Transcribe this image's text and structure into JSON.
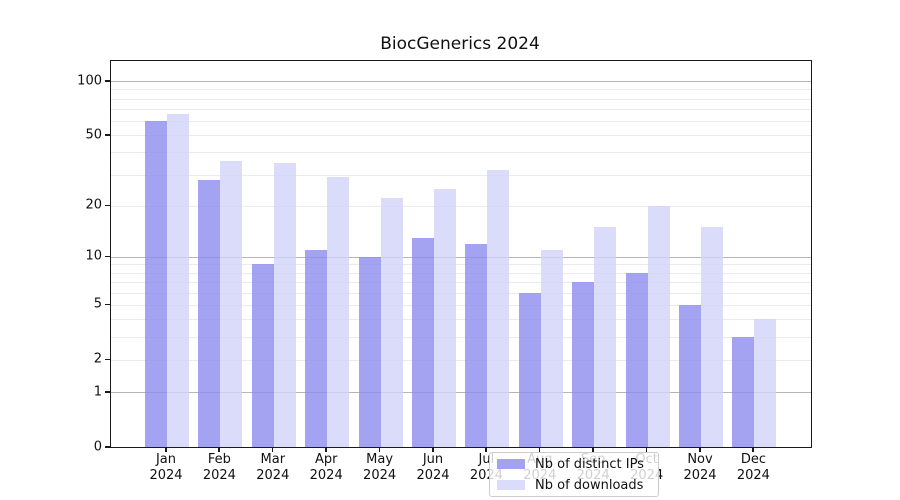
{
  "title": "BiocGenerics 2024",
  "chart_data": {
    "type": "bar",
    "title": "BiocGenerics 2024",
    "categories": [
      "Jan\n2024",
      "Feb\n2024",
      "Mar\n2024",
      "Apr\n2024",
      "May\n2024",
      "Jun\n2024",
      "Jul\n2024",
      "Aug\n2024",
      "Sep\n2024",
      "Oct\n2024",
      "Nov\n2024",
      "Dec\n2024"
    ],
    "series": [
      {
        "name": "Nb of distinct IPs",
        "color": "rgba(140,140,238,0.8)",
        "values": [
          60,
          28,
          9,
          11,
          10,
          13,
          12,
          6,
          7,
          8,
          5,
          3
        ]
      },
      {
        "name": "Nb of downloads",
        "color": "rgba(210,210,249,0.8)",
        "values": [
          66,
          36,
          35,
          29,
          22,
          25,
          32,
          11,
          15,
          20,
          15,
          4
        ]
      }
    ],
    "y_axis": {
      "scale": "log1p",
      "tick_labels": [
        "100",
        "50",
        "20",
        "10",
        "5",
        "2",
        "1",
        "0"
      ],
      "tick_values": [
        100,
        50,
        20,
        10,
        5,
        2,
        1,
        0
      ],
      "gridlines_minor": [
        2,
        3,
        4,
        5,
        6,
        7,
        8,
        9,
        20,
        30,
        40,
        50,
        60,
        70,
        80,
        90
      ],
      "gridlines_major": [
        1,
        10,
        100
      ],
      "range_top": 100
    },
    "x_axis": {
      "label": "",
      "year": "2024"
    },
    "legend": {
      "position": "bottom-center",
      "entries": [
        "Nb of distinct IPs",
        "Nb of downloads"
      ]
    },
    "grid": true,
    "colors": {
      "distinct_ips": "#a3a3f1",
      "downloads": "#dbdbfa",
      "axis": "#1a1a1a",
      "grid_minor": "#ebebeb",
      "grid_major": "#b5b5b5"
    }
  }
}
